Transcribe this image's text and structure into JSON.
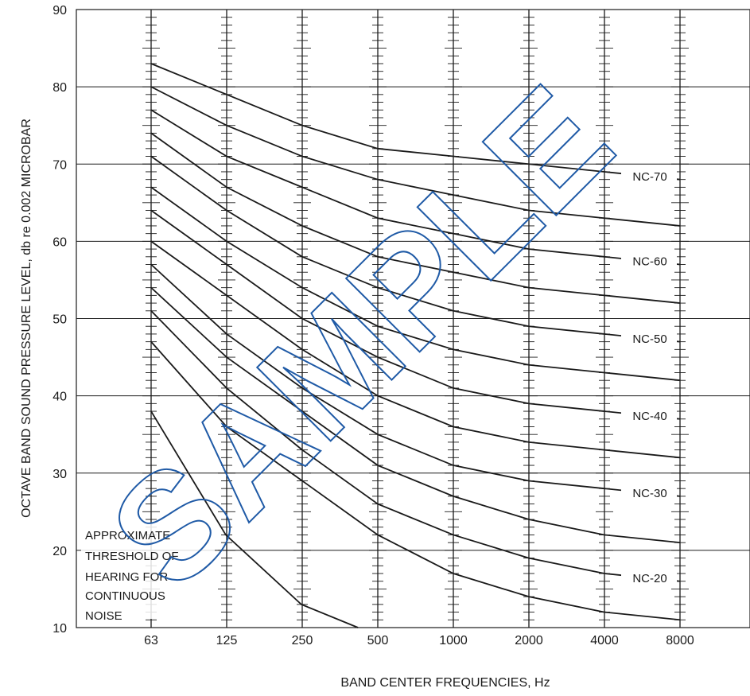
{
  "chart_data": {
    "type": "line",
    "title": "",
    "xlabel": "BAND CENTER FREQUENCIES, Hz",
    "ylabel": "OCTAVE BAND SOUND PRESSURE LEVEL, db re 0.002 MICROBAR",
    "x_scale": "log",
    "categories": [
      "63",
      "125",
      "250",
      "500",
      "1000",
      "2000",
      "4000",
      "8000"
    ],
    "ylim": [
      10,
      90
    ],
    "yticks": [
      10,
      20,
      30,
      40,
      50,
      60,
      70,
      80,
      90
    ],
    "grid": true,
    "series": [
      {
        "name": "NC-70",
        "values": [
          83,
          79,
          75,
          72,
          71,
          70,
          69,
          68
        ]
      },
      {
        "name": "",
        "values": [
          80,
          75,
          71,
          68,
          66,
          64,
          63,
          62
        ]
      },
      {
        "name": "NC-60",
        "values": [
          77,
          71,
          67,
          63,
          61,
          59,
          58,
          57
        ]
      },
      {
        "name": "",
        "values": [
          74,
          67,
          62,
          58,
          56,
          54,
          53,
          52
        ]
      },
      {
        "name": "NC-50",
        "values": [
          71,
          64,
          58,
          54,
          51,
          49,
          48,
          47
        ]
      },
      {
        "name": "",
        "values": [
          67,
          60,
          54,
          49,
          46,
          44,
          43,
          42
        ]
      },
      {
        "name": "NC-40",
        "values": [
          64,
          57,
          50,
          45,
          41,
          39,
          38,
          37
        ]
      },
      {
        "name": "",
        "values": [
          60,
          53,
          46,
          40,
          36,
          34,
          33,
          32
        ]
      },
      {
        "name": "NC-30",
        "values": [
          57,
          48,
          41,
          35,
          31,
          29,
          28,
          27
        ]
      },
      {
        "name": "",
        "values": [
          54,
          45,
          38,
          31,
          27,
          24,
          22,
          21
        ]
      },
      {
        "name": "NC-20",
        "values": [
          51,
          41,
          33,
          26,
          22,
          19,
          17,
          16
        ]
      },
      {
        "name": "",
        "values": [
          47,
          36,
          29,
          22,
          17,
          14,
          12,
          11
        ]
      }
    ],
    "threshold_curve": {
      "name": "APPROXIMATE THRESHOLD OF HEARING FOR CONTINUOUS NOISE",
      "x": [
        63,
        125,
        250,
        500
      ],
      "values": [
        38,
        22,
        13,
        9
      ]
    },
    "annotation_lines": [
      "APPROXIMATE",
      "THRESHOLD OF",
      "HEARING FOR",
      "CONTINUOUS",
      "NOISE"
    ],
    "watermark": "SAMPLE"
  }
}
